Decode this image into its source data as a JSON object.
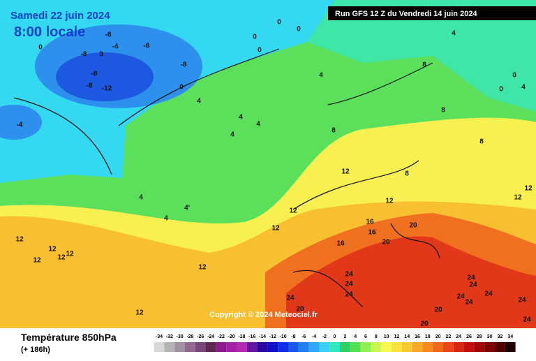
{
  "header": {
    "date": "Samedi 22 juin 2024",
    "time": "8:00 locale",
    "run": "Run GFS 12 Z du Vendredi 14 juin 2024",
    "copyright": "Copyright © 2024 Meteociel.fr"
  },
  "footer": {
    "title": "Température 850hPa",
    "lead": "(+ 186h)"
  },
  "scale": {
    "values": [
      -34,
      -32,
      -30,
      -28,
      -26,
      -24,
      -22,
      -20,
      -18,
      -16,
      -14,
      -12,
      -10,
      -8,
      -6,
      -4,
      -2,
      0,
      2,
      4,
      6,
      8,
      10,
      12,
      14,
      16,
      18,
      20,
      22,
      24,
      26,
      28,
      30,
      32,
      34
    ],
    "colors": [
      "#d8d8d8",
      "#b4b4b4",
      "#a090a0",
      "#906890",
      "#784878",
      "#602850",
      "#8c1c8c",
      "#a420a4",
      "#b428b4",
      "#6418a0",
      "#2808a0",
      "#1010c8",
      "#1030e8",
      "#1858e8",
      "#2080f0",
      "#30a8f8",
      "#38d0f8",
      "#30e8c0",
      "#30d060",
      "#50e050",
      "#90f050",
      "#c8f850",
      "#f8f850",
      "#f8e040",
      "#f8c830",
      "#f8a828",
      "#f88820",
      "#f06818",
      "#e84818",
      "#d82810",
      "#c01010",
      "#a00808",
      "#800404",
      "#500000",
      "#200000"
    ]
  },
  "map": {
    "labels": [
      "-8",
      "0",
      "-8",
      "0",
      "-4",
      "-8",
      "-8",
      "-8",
      "-8",
      "-12",
      "-4",
      "0",
      "0",
      "0",
      "0",
      "0",
      "4",
      "4",
      "4",
      "4",
      "4",
      "4",
      "8",
      "8",
      "8",
      "8",
      "12",
      "8",
      "12",
      "12",
      "12",
      "16",
      "16",
      "16",
      "20",
      "20",
      "12",
      "12",
      "12",
      "12",
      "12",
      "12",
      "12",
      "4",
      "4'",
      "4",
      "24",
      "24",
      "24",
      "24",
      "20",
      "20",
      "20",
      "24",
      "24",
      "24",
      "24",
      "24",
      "24",
      "24",
      "12",
      "12",
      "0",
      "4",
      "0"
    ]
  }
}
